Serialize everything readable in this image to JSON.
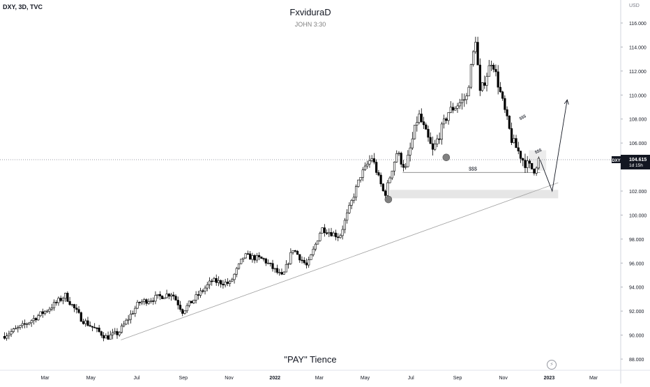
{
  "header": {
    "symbol": "DXY, 3D, TVC",
    "author": "FxviduraD",
    "verse": "JOHN 3:30"
  },
  "caption": "\"PAY\" Tience",
  "logo_icon": "lightning-icon",
  "price_tag": {
    "label": "DXY",
    "value": "104.615",
    "countdown": "1d 15h"
  },
  "colors": {
    "bullish": "#ffffff",
    "bearish": "#000000",
    "price_line": "#787b86",
    "zone": "#e6e6e6",
    "marker": "#808080"
  },
  "chart_data": {
    "type": "candlestick",
    "title": "FxviduraD",
    "subtitle": "JOHN 3:30",
    "currency": "USD",
    "ylim": [
      87.4,
      117.5
    ],
    "y_ticks": [
      88,
      90,
      92,
      94,
      96,
      98,
      100,
      102,
      104,
      106,
      108,
      110,
      112,
      114,
      116
    ],
    "y_tick_labels": [
      "88.000",
      "90.000",
      "92.000",
      "94.000",
      "96.000",
      "98.000",
      "100.000",
      "102.000",
      "104.000",
      "106.000",
      "108.000",
      "110.000",
      "112.000",
      "114.000",
      "116.000"
    ],
    "x_ticks": [
      {
        "label": "Mar",
        "date": "2021-03-01"
      },
      {
        "label": "May",
        "date": "2021-05-01"
      },
      {
        "label": "Jul",
        "date": "2021-07-01"
      },
      {
        "label": "Sep",
        "date": "2021-09-01"
      },
      {
        "label": "Nov",
        "date": "2021-11-01"
      },
      {
        "label": "2022",
        "date": "2022-01-01"
      },
      {
        "label": "Mar",
        "date": "2022-03-01"
      },
      {
        "label": "May",
        "date": "2022-05-01"
      },
      {
        "label": "Jul",
        "date": "2022-07-01"
      },
      {
        "label": "Sep",
        "date": "2022-09-01"
      },
      {
        "label": "Nov",
        "date": "2022-11-01"
      },
      {
        "label": "2023",
        "date": "2023-01-01"
      },
      {
        "label": "Mar",
        "date": "2023-03-01"
      }
    ],
    "path": [
      [
        "2021-01-06",
        89.9
      ],
      [
        "2021-02-01",
        90.7
      ],
      [
        "2021-03-09",
        92.2
      ],
      [
        "2021-03-31",
        93.3
      ],
      [
        "2021-04-22",
        91.3
      ],
      [
        "2021-05-25",
        89.8
      ],
      [
        "2021-06-10",
        90.2
      ],
      [
        "2021-07-07",
        92.7
      ],
      [
        "2021-08-20",
        93.5
      ],
      [
        "2021-09-03",
        92.0
      ],
      [
        "2021-10-12",
        94.5
      ],
      [
        "2021-11-05",
        94.3
      ],
      [
        "2021-11-24",
        96.6
      ],
      [
        "2021-12-20",
        96.3
      ],
      [
        "2022-01-14",
        94.8
      ],
      [
        "2022-01-28",
        97.2
      ],
      [
        "2022-02-16",
        95.7
      ],
      [
        "2022-03-07",
        98.9
      ],
      [
        "2022-03-31",
        98.2
      ],
      [
        "2022-04-28",
        103.3
      ],
      [
        "2022-05-13",
        104.8
      ],
      [
        "2022-05-30",
        101.6
      ],
      [
        "2022-06-15",
        105.2
      ],
      [
        "2022-06-27",
        103.9
      ],
      [
        "2022-07-14",
        108.4
      ],
      [
        "2022-08-02",
        105.3
      ],
      [
        "2022-08-23",
        108.6
      ],
      [
        "2022-09-16",
        109.8
      ],
      [
        "2022-09-28",
        114.7
      ],
      [
        "2022-10-04",
        110.1
      ],
      [
        "2022-10-20",
        113.0
      ],
      [
        "2022-11-15",
        106.3
      ],
      [
        "2022-12-02",
        104.4
      ],
      [
        "2022-12-15",
        103.7
      ],
      [
        "2022-12-20",
        104.6
      ]
    ],
    "last_price": 104.615,
    "annotations": {
      "liquidity_labels": [
        "$$$",
        "$$$",
        "$$$"
      ],
      "liquidity_line": {
        "start": "2022-06-20",
        "end": "2022-12-20",
        "price": 103.55
      },
      "demand_zone": {
        "start": "2022-06-03",
        "end": "2023-01-13",
        "low": 101.4,
        "high": 102.1
      },
      "trendline": {
        "start": [
          "2021-06-10",
          89.6
        ],
        "end": [
          "2023-01-13",
          102.7
        ]
      },
      "projection": [
        [
          "2022-12-20",
          104.6
        ],
        [
          "2023-01-05",
          102.0
        ],
        [
          "2023-01-25",
          109.6
        ]
      ],
      "markers": [
        [
          "2022-06-01",
          101.3
        ],
        [
          "2022-08-17",
          104.8
        ]
      ]
    }
  }
}
